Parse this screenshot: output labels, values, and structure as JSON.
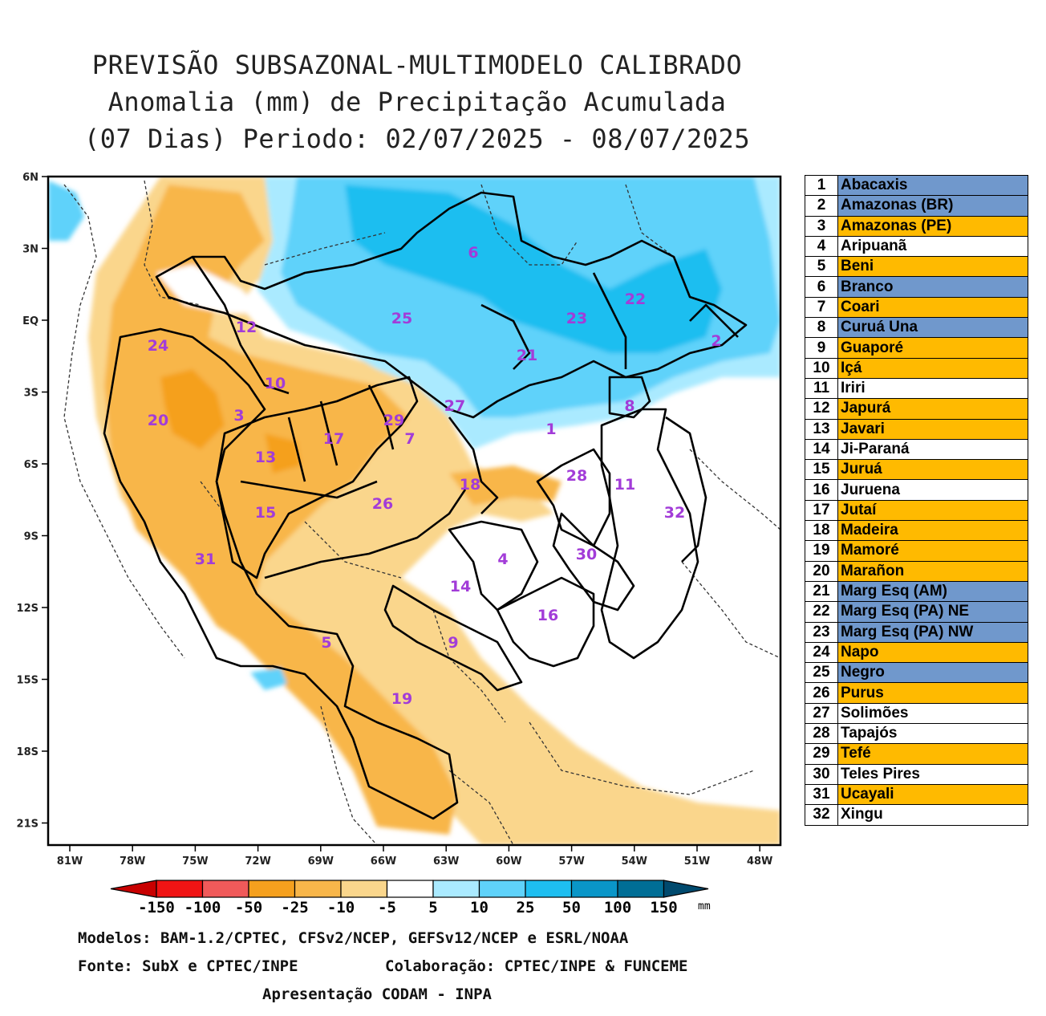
{
  "title": {
    "line1": "PREVISÃO SUBSAZONAL-MULTIMODELO CALIBRADO",
    "line2": "Anomalia (mm) de Precipitação Acumulada",
    "line3": "(07 Dias) Periodo: 02/07/2025 - 08/07/2025"
  },
  "axes": {
    "lat_labels": [
      "6N",
      "3N",
      "EQ",
      "3S",
      "6S",
      "9S",
      "12S",
      "15S",
      "18S",
      "21S"
    ],
    "lon_labels": [
      "81W",
      "78W",
      "75W",
      "72W",
      "69W",
      "66W",
      "63W",
      "60W",
      "57W",
      "54W",
      "51W",
      "48W"
    ]
  },
  "basin_labels": [
    "1",
    "2",
    "3",
    "4",
    "5",
    "6",
    "7",
    "8",
    "9",
    "10",
    "11",
    "12",
    "13",
    "14",
    "15",
    "16",
    "17",
    "18",
    "19",
    "20",
    "21",
    "22",
    "23",
    "24",
    "25",
    "26",
    "27",
    "28",
    "29",
    "30",
    "31",
    "32"
  ],
  "basins": [
    {
      "num": "1",
      "name": "Abacaxis",
      "color": "#7098cc"
    },
    {
      "num": "2",
      "name": "Amazonas (BR)",
      "color": "#7098cc"
    },
    {
      "num": "3",
      "name": "Amazonas (PE)",
      "color": "#ffba00"
    },
    {
      "num": "4",
      "name": "Aripuanã",
      "color": "#ffffff"
    },
    {
      "num": "5",
      "name": "Beni",
      "color": "#ffba00"
    },
    {
      "num": "6",
      "name": "Branco",
      "color": "#7098cc"
    },
    {
      "num": "7",
      "name": "Coari",
      "color": "#ffba00"
    },
    {
      "num": "8",
      "name": "Curuá Una",
      "color": "#7098cc"
    },
    {
      "num": "9",
      "name": "Guaporé",
      "color": "#ffba00"
    },
    {
      "num": "10",
      "name": "Içá",
      "color": "#ffba00"
    },
    {
      "num": "11",
      "name": "Iriri",
      "color": "#ffffff"
    },
    {
      "num": "12",
      "name": "Japurá",
      "color": "#ffba00"
    },
    {
      "num": "13",
      "name": "Javari",
      "color": "#ffba00"
    },
    {
      "num": "14",
      "name": "Ji-Paraná",
      "color": "#ffffff"
    },
    {
      "num": "15",
      "name": "Juruá",
      "color": "#ffba00"
    },
    {
      "num": "16",
      "name": "Juruena",
      "color": "#ffffff"
    },
    {
      "num": "17",
      "name": "Jutaí",
      "color": "#ffba00"
    },
    {
      "num": "18",
      "name": "Madeira",
      "color": "#ffba00"
    },
    {
      "num": "19",
      "name": "Mamoré",
      "color": "#ffba00"
    },
    {
      "num": "20",
      "name": "Marañon",
      "color": "#ffba00"
    },
    {
      "num": "21",
      "name": "Marg Esq (AM)",
      "color": "#7098cc"
    },
    {
      "num": "22",
      "name": "Marg Esq (PA) NE",
      "color": "#7098cc"
    },
    {
      "num": "23",
      "name": "Marg Esq (PA) NW",
      "color": "#7098cc"
    },
    {
      "num": "24",
      "name": "Napo",
      "color": "#ffba00"
    },
    {
      "num": "25",
      "name": "Negro",
      "color": "#7098cc"
    },
    {
      "num": "26",
      "name": "Purus",
      "color": "#ffba00"
    },
    {
      "num": "27",
      "name": "Solimões",
      "color": "#ffffff"
    },
    {
      "num": "28",
      "name": "Tapajós",
      "color": "#ffffff"
    },
    {
      "num": "29",
      "name": "Tefé",
      "color": "#ffba00"
    },
    {
      "num": "30",
      "name": "Teles Pires",
      "color": "#ffffff"
    },
    {
      "num": "31",
      "name": "Ucayali",
      "color": "#ffba00"
    },
    {
      "num": "32",
      "name": "Xingu",
      "color": "#ffffff"
    }
  ],
  "colorbar": {
    "labels": [
      "-150",
      "-100",
      "-50",
      "-25",
      "-10",
      "-5",
      "5",
      "10",
      "25",
      "50",
      "100",
      "150"
    ],
    "unit": "mm",
    "colors": [
      "#c80000",
      "#f01414",
      "#f05a5a",
      "#f5a01e",
      "#f8b64a",
      "#fad68c",
      "#ffffff",
      "#aaeaff",
      "#5fd2fa",
      "#1ebef0",
      "#0a96c8",
      "#006e96",
      "#004a6e"
    ]
  },
  "footer": {
    "models": "Modelos: BAM-1.2/CPTEC, CFSv2/NCEP, GEFSv12/NCEP e ESRL/NOAA",
    "source": "Fonte: SubX e CPTEC/INPE",
    "collab": "Colaboração: CPTEC/INPE & FUNCEME",
    "presentation": "Apresentação CODAM - INPA"
  }
}
